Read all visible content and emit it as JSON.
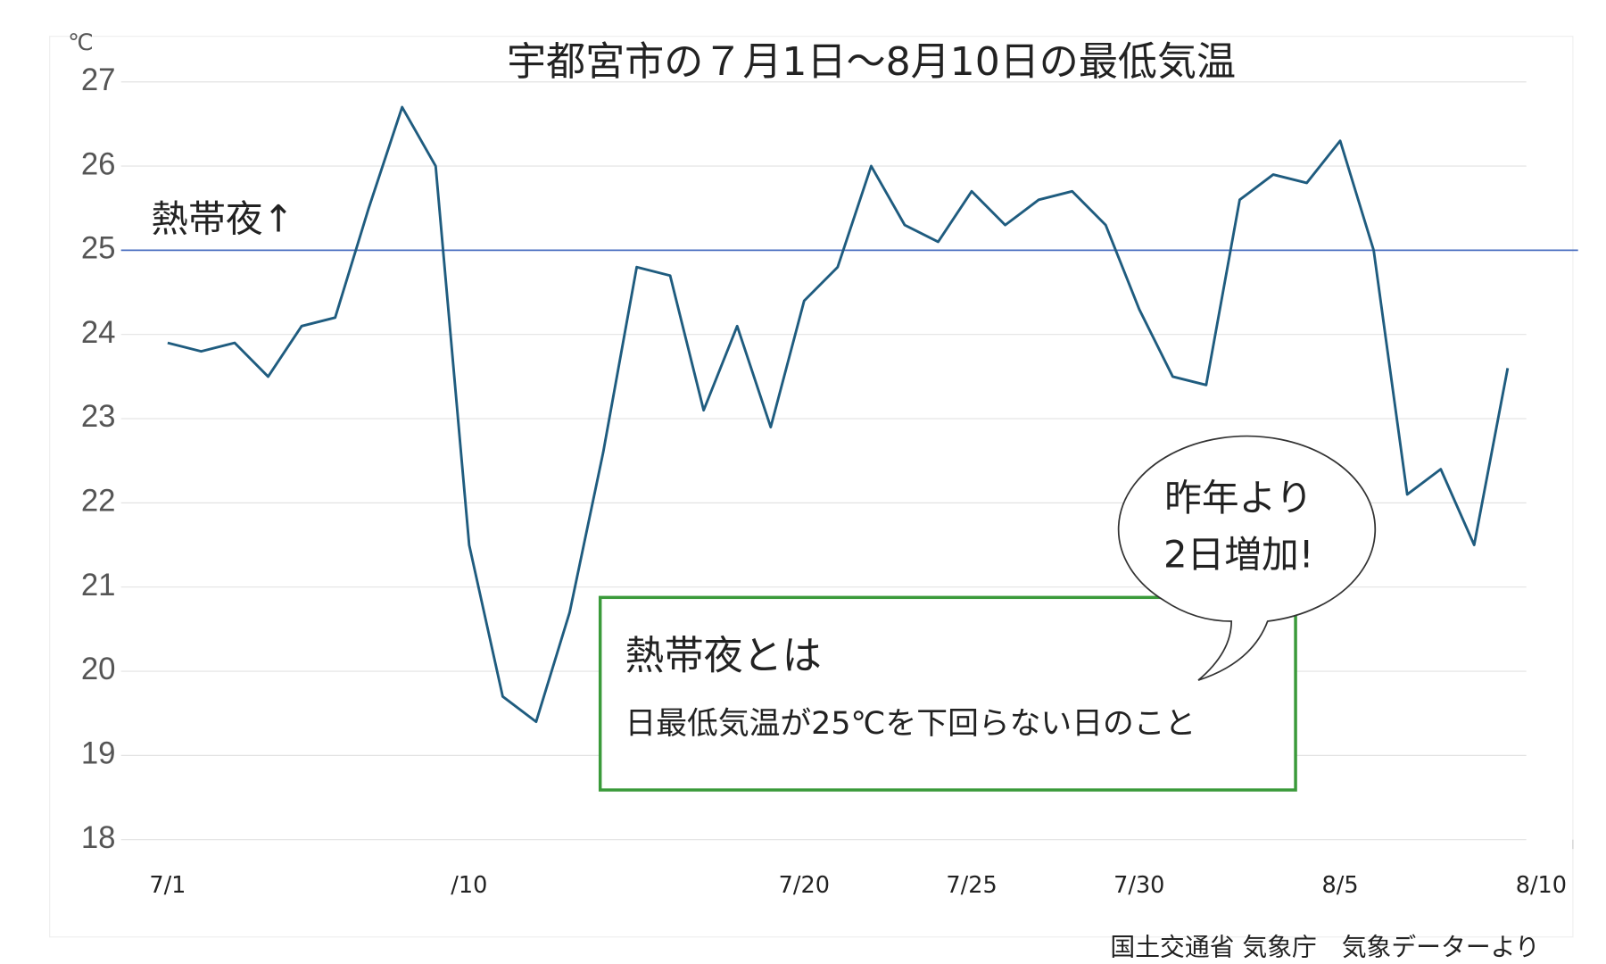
{
  "chart_data": {
    "type": "line",
    "title": "宇都宮市の７月1日～8月10日の最低気温",
    "y_unit": "℃",
    "categories": [
      "7/1",
      null,
      null,
      null,
      null,
      null,
      null,
      null,
      null,
      "/10",
      null,
      null,
      null,
      null,
      null,
      null,
      null,
      null,
      null,
      "7/20",
      null,
      null,
      null,
      null,
      "7/25",
      null,
      null,
      null,
      null,
      "7/30",
      null,
      null,
      null,
      null,
      null,
      "8/5",
      null,
      null,
      null,
      null,
      null,
      "8/10"
    ],
    "series": [
      {
        "name": "最低気温",
        "color": "#1f5c7f",
        "values": [
          23.9,
          23.8,
          23.9,
          23.5,
          24.1,
          24.2,
          25.5,
          26.7,
          26.0,
          21.5,
          19.7,
          19.4,
          20.7,
          22.6,
          24.8,
          24.7,
          23.1,
          24.1,
          22.9,
          24.4,
          24.8,
          26.0,
          25.3,
          25.1,
          25.7,
          25.3,
          25.6,
          25.7,
          25.3,
          24.3,
          23.5,
          23.4,
          25.6,
          25.9,
          25.8,
          26.3,
          25.0,
          22.1,
          22.4,
          21.5,
          23.6,
          null
        ]
      }
    ],
    "ylim": [
      18,
      27
    ],
    "yticks": [
      18,
      19,
      20,
      21,
      22,
      23,
      24,
      25,
      26,
      27
    ],
    "grid": true,
    "reference_line": {
      "value": 25,
      "label": "熱帯夜↑",
      "color": "#4a6fc0"
    },
    "annotations": {
      "box_title": "熱帯夜とは",
      "box_text": "日最低気温が25℃を下回らない日のこと",
      "bubble_line1": "昨年より",
      "bubble_line2": "2日増加!"
    },
    "source": "国土交通省 気象庁　気象データーより"
  }
}
